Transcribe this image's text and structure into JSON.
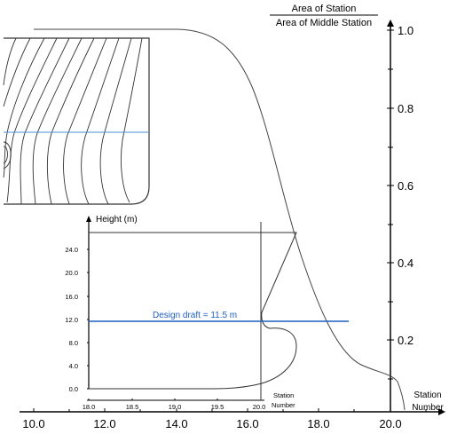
{
  "main_axes": {
    "y_title_line1": "Area of Station",
    "y_title_line2": "Area of Middle Station",
    "y_ticks": [
      "1.0",
      "0.8",
      "0.6",
      "0.4",
      "0.2"
    ],
    "x_ticks": [
      "10.0",
      "12.0",
      "14.0",
      "16.0",
      "18.0",
      "20.0"
    ],
    "x_title_line1": "Station",
    "x_title_line2": "Number"
  },
  "inset_axes": {
    "y_title": "Height (m)",
    "y_ticks": [
      "24.0",
      "20.0",
      "16.0",
      "12.0",
      "8.0",
      "4.0",
      "0.0"
    ],
    "x_ticks": [
      "18.0",
      "18.5",
      "19.0",
      "19.5",
      "20.0"
    ],
    "x_title_line1": "Station",
    "x_title_line2": "Number"
  },
  "design_draft": {
    "label": "Design draft = 11.5 m",
    "color": "#1f5fbf"
  },
  "colors": {
    "line": "#333333",
    "axis": "#000000",
    "waterline": "#4a90d9"
  }
}
